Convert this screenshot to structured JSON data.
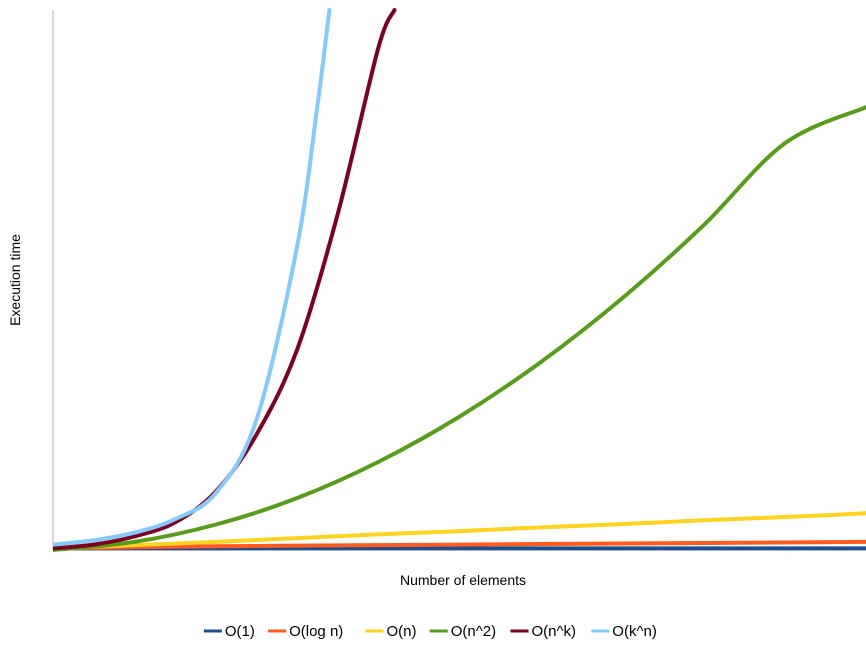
{
  "chart_data": {
    "type": "line",
    "title": "",
    "xlabel": "Number of elements",
    "ylabel": "Execution time",
    "x_range": [
      0,
      10
    ],
    "ylim": [
      0,
      100
    ],
    "grid": false,
    "legend_placement": "bottom",
    "series": [
      {
        "name": "O(1)",
        "color": "#1f4e8c",
        "x": [
          0,
          1,
          2,
          3,
          4,
          5,
          6,
          7,
          8,
          9,
          10
        ],
        "values": [
          0.3,
          0.3,
          0.3,
          0.3,
          0.3,
          0.3,
          0.3,
          0.3,
          0.3,
          0.3,
          0.3
        ]
      },
      {
        "name": "O(log n)",
        "color": "#ff5a1f",
        "x": [
          0,
          1,
          2,
          3,
          4,
          5,
          6,
          7,
          8,
          9,
          10
        ],
        "values": [
          0.3,
          0.5,
          0.7,
          0.8,
          0.9,
          1.0,
          1.1,
          1.2,
          1.3,
          1.4,
          1.5
        ]
      },
      {
        "name": "O(n)",
        "color": "#ffd320",
        "x": [
          0,
          1,
          2,
          3,
          4,
          5,
          6,
          7,
          8,
          9,
          10
        ],
        "values": [
          0.3,
          0.9,
          1.5,
          2.2,
          2.9,
          3.5,
          4.2,
          4.8,
          5.5,
          6.1,
          6.8
        ]
      },
      {
        "name": "O(n^2)",
        "color": "#579d1c",
        "x": [
          0,
          1,
          2,
          3,
          4,
          5,
          6,
          7,
          8,
          9,
          10
        ],
        "values": [
          0.0,
          1.5,
          4.7,
          9.6,
          16.3,
          24.7,
          34.8,
          46.6,
          60.1,
          75.3,
          82.0
        ]
      },
      {
        "name": "O(n^k)",
        "color": "#7e0021",
        "x": [
          0,
          0.5,
          1,
          1.5,
          2,
          2.5,
          3,
          3.5,
          4,
          4.2
        ],
        "values": [
          0.3,
          1.0,
          2.5,
          5.1,
          10.8,
          21.3,
          37.0,
          62.1,
          92.9,
          100.0
        ]
      },
      {
        "name": "O(k^n)",
        "color": "#83caff",
        "x": [
          0,
          0.5,
          1,
          1.5,
          2,
          2.5,
          3,
          3.25,
          3.4
        ],
        "values": [
          1.0,
          1.8,
          3.2,
          5.7,
          10.5,
          24.0,
          56.0,
          82.0,
          100.0
        ]
      }
    ]
  }
}
